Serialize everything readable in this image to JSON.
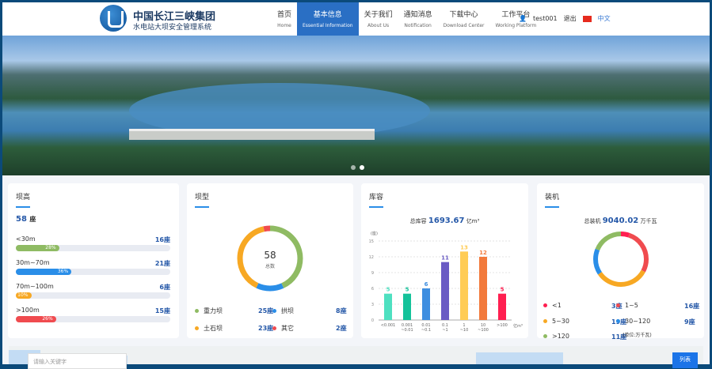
{
  "header": {
    "brand_title": "中国长江三峡集团",
    "brand_subtitle": "水电站大坝安全管理系统",
    "nav": [
      {
        "zh": "首页",
        "en": "Home"
      },
      {
        "zh": "基本信息",
        "en": "Essential Information",
        "active": true
      },
      {
        "zh": "关于我们",
        "en": "About Us"
      },
      {
        "zh": "通知消息",
        "en": "Notification"
      },
      {
        "zh": "下载中心",
        "en": "Download Center"
      },
      {
        "zh": "工作平台",
        "en": "Working Platform"
      }
    ],
    "user": "test001",
    "logout": "退出",
    "language": "中文"
  },
  "dam_height": {
    "title": "坝高",
    "total": "58",
    "unit": "座",
    "rows": [
      {
        "label": "<30m",
        "count": "16座",
        "pct": 28,
        "pct_label": "28%",
        "color": "#8fbb63"
      },
      {
        "label": "30m~70m",
        "count": "21座",
        "pct": 36,
        "pct_label": "36%",
        "color": "#2a8ee8"
      },
      {
        "label": "70m~100m",
        "count": "6座",
        "pct": 10,
        "pct_label": "10%",
        "color": "#f7a823"
      },
      {
        "label": ">100m",
        "count": "15座",
        "pct": 26,
        "pct_label": "26%",
        "color": "#f04b4f"
      }
    ]
  },
  "dam_type": {
    "title": "坝型",
    "center_value": "58",
    "center_label": "总数",
    "items": [
      {
        "label": "重力坝",
        "count": "25座",
        "value": 25,
        "color": "#8fbb63"
      },
      {
        "label": "拱坝",
        "count": "8座",
        "value": 8,
        "color": "#2a8ee8"
      },
      {
        "label": "土石坝",
        "count": "23座",
        "value": 23,
        "color": "#f7a823"
      },
      {
        "label": "其它",
        "count": "2座",
        "value": 2,
        "color": "#f04b4f"
      }
    ]
  },
  "storage": {
    "title": "库容",
    "total_label": "总库容",
    "total": "1693.67",
    "total_unit": "亿m³"
  },
  "chart_data": {
    "type": "bar",
    "ylabel": "(座)",
    "xlabel": "亿m³",
    "ylim": [
      0,
      15
    ],
    "yticks": [
      0,
      3,
      6,
      9,
      12,
      15
    ],
    "grid": true,
    "categories": [
      "<0.001",
      "0.001~0.01",
      "0.01~0.1",
      "0.1~1",
      "1~10",
      "10~100",
      ">100"
    ],
    "values": [
      5,
      5,
      6,
      11,
      13,
      12,
      5
    ],
    "colors": [
      "#4ee0c0",
      "#14c29a",
      "#3e8ee0",
      "#6a5bc4",
      "#ffcc55",
      "#f27a3c",
      "#ff1f50"
    ]
  },
  "installed": {
    "title": "装机",
    "total_label": "总装机",
    "total": "9040.02",
    "total_unit": "万千瓦",
    "unit_note": "(单位:万千瓦)",
    "items": [
      {
        "label": "<1",
        "count": "3座",
        "value": 3,
        "color": "#ff1f50"
      },
      {
        "label": "1~5",
        "count": "16座",
        "value": 16,
        "color": "#f04b4f"
      },
      {
        "label": "5~30",
        "count": "19座",
        "value": 19,
        "color": "#f7a823"
      },
      {
        "label": "30~120",
        "count": "9座",
        "value": 9,
        "color": "#2a8ee8"
      },
      {
        "label": ">120",
        "count": "11座",
        "value": 11,
        "color": "#8fbb63"
      }
    ]
  },
  "map": {
    "search_placeholder": "请输入关键字",
    "list_button": "列表"
  }
}
